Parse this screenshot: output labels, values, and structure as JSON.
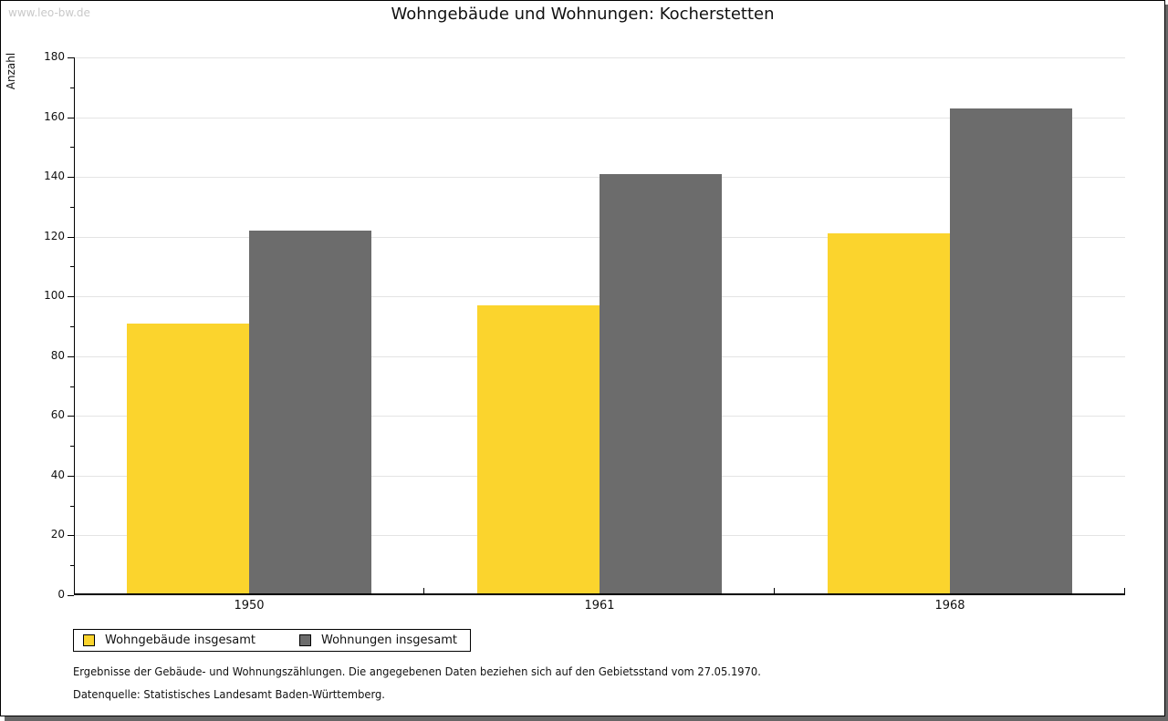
{
  "window": {
    "watermark": "www.leo-bw.de"
  },
  "chart_data": {
    "type": "bar",
    "title": "Wohngebäude und Wohnungen: Kocherstetten",
    "ylabel": "Anzahl",
    "xlabel": "",
    "categories": [
      "1950",
      "1961",
      "1968"
    ],
    "series": [
      {
        "name": "Wohngebäude insgesamt",
        "color": "#FBD42D",
        "values": [
          91,
          97,
          121
        ]
      },
      {
        "name": "Wohnungen insgesamt",
        "color": "#6C6C6C",
        "values": [
          122,
          141,
          163
        ]
      }
    ],
    "ylim": [
      0,
      180
    ],
    "ytick_step": 20,
    "y_minor_tick_step": 10,
    "grid": true,
    "legend_position": "bottom-left"
  },
  "footnotes": {
    "line1": "Ergebnisse der Gebäude- und Wohnungszählungen. Die angegebenen Daten beziehen sich auf den Gebietsstand vom 27.05.1970.",
    "line2": "Datenquelle: Statistisches Landesamt Baden-Württemberg."
  },
  "colors": {
    "grid": "#E4E4E4",
    "axis": "#000000",
    "watermark": "#C9C9C9",
    "frame_shadow": "#666666"
  }
}
